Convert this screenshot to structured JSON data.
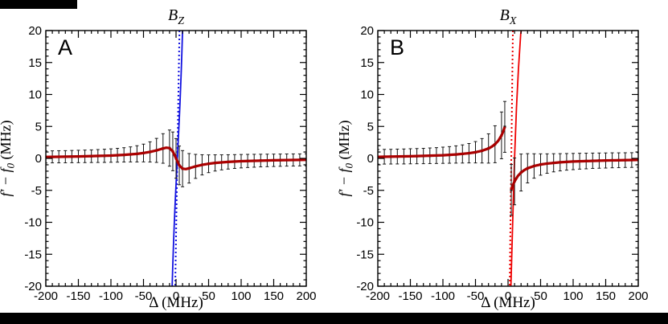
{
  "decor": {
    "top_bar_color": "#000000",
    "bottom_bar_color": "#000000"
  },
  "chart_data": [
    {
      "panel_label": "A",
      "type": "line+errorbar",
      "title_main": "B",
      "title_sub": "Z",
      "xlabel": "Δ (MHz)",
      "ylabel_main": "f′ − f",
      "ylabel_sub": "0",
      "ylabel_unit": " (MHz)",
      "xlim": [
        -200,
        200
      ],
      "ylim": [
        -20,
        20
      ],
      "x_major": [
        -200,
        -150,
        -100,
        -50,
        0,
        50,
        100,
        150,
        200
      ],
      "y_major": [
        -20,
        -15,
        -10,
        -5,
        0,
        5,
        10,
        15,
        20
      ],
      "x_minor_step": 10,
      "y_minor_step": 1,
      "series": [
        {
          "name": "model-line-solid",
          "type": "line",
          "color": "#1212e0",
          "width": 1.8,
          "dash": "",
          "points": [
            [
              -6,
              -20.1
            ],
            [
              -5,
              -16.7
            ],
            [
              -4,
              -13.7
            ],
            [
              -3,
              -11
            ],
            [
              -2,
              -8.5
            ],
            [
              -1,
              -6.2
            ],
            [
              0,
              -4.1
            ],
            [
              1,
              -2
            ],
            [
              2,
              0
            ],
            [
              3,
              2
            ],
            [
              4,
              4.1
            ],
            [
              5,
              6.2
            ],
            [
              6,
              8.5
            ],
            [
              7,
              11
            ],
            [
              8,
              13.7
            ],
            [
              9,
              16.7
            ],
            [
              10,
              20.1
            ]
          ]
        },
        {
          "name": "model-line-dotted",
          "type": "line",
          "color": "#1212e0",
          "width": 2,
          "dash": "2,3",
          "points": [
            [
              -1.33,
              -20.5
            ],
            [
              5.33,
              20.5
            ]
          ]
        },
        {
          "name": "data-points",
          "type": "errorbar",
          "color": "#151515",
          "points": [
            [
              -200,
              0.22,
              0.94
            ],
            [
              -190,
              0.24,
              0.94
            ],
            [
              -180,
              0.25,
              0.95
            ],
            [
              -170,
              0.26,
              0.95
            ],
            [
              -160,
              0.28,
              0.96
            ],
            [
              -150,
              0.3,
              0.97
            ],
            [
              -140,
              0.32,
              0.98
            ],
            [
              -130,
              0.34,
              0.99
            ],
            [
              -120,
              0.37,
              1.01
            ],
            [
              -110,
              0.4,
              1.03
            ],
            [
              -100,
              0.44,
              1.05
            ],
            [
              -90,
              0.49,
              1.08
            ],
            [
              -80,
              0.55,
              1.12
            ],
            [
              -70,
              0.62,
              1.18
            ],
            [
              -60,
              0.71,
              1.27
            ],
            [
              -50,
              0.84,
              1.39
            ],
            [
              -40,
              1.01,
              1.58
            ],
            [
              -30,
              1.25,
              1.88
            ],
            [
              -20,
              1.55,
              2.31
            ],
            [
              -10,
              1.61,
              2.83
            ],
            [
              -5,
              1.1,
              3.03
            ],
            [
              0,
              0.0,
              3.1
            ],
            [
              5,
              -1.1,
              3.03
            ],
            [
              10,
              -1.61,
              2.83
            ],
            [
              20,
              -1.55,
              2.31
            ],
            [
              30,
              -1.25,
              1.88
            ],
            [
              40,
              -1.01,
              1.58
            ],
            [
              50,
              -0.84,
              1.39
            ],
            [
              60,
              -0.71,
              1.27
            ],
            [
              70,
              -0.62,
              1.18
            ],
            [
              80,
              -0.55,
              1.12
            ],
            [
              90,
              -0.49,
              1.08
            ],
            [
              100,
              -0.44,
              1.05
            ],
            [
              110,
              -0.4,
              1.03
            ],
            [
              120,
              -0.37,
              1.01
            ],
            [
              130,
              -0.34,
              0.99
            ],
            [
              140,
              -0.32,
              0.98
            ],
            [
              150,
              -0.3,
              0.97
            ],
            [
              160,
              -0.28,
              0.96
            ],
            [
              170,
              -0.26,
              0.95
            ],
            [
              180,
              -0.25,
              0.95
            ],
            [
              190,
              -0.24,
              0.94
            ],
            [
              200,
              -0.22,
              0.94
            ]
          ]
        },
        {
          "name": "fit-curve",
          "type": "line",
          "color": "#aa0000",
          "width": 3.2,
          "dash": "",
          "points": [
            [
              -200,
              0.22
            ],
            [
              -150,
              0.3
            ],
            [
              -100,
              0.44
            ],
            [
              -80,
              0.55
            ],
            [
              -60,
              0.71
            ],
            [
              -50,
              0.84
            ],
            [
              -40,
              1.01
            ],
            [
              -30,
              1.25
            ],
            [
              -25,
              1.4
            ],
            [
              -20,
              1.55
            ],
            [
              -15,
              1.67
            ],
            [
              -10,
              1.61
            ],
            [
              -5,
              1.1
            ],
            [
              0,
              0
            ],
            [
              5,
              -1.1
            ],
            [
              10,
              -1.61
            ],
            [
              15,
              -1.67
            ],
            [
              20,
              -1.55
            ],
            [
              25,
              -1.4
            ],
            [
              30,
              -1.25
            ],
            [
              40,
              -1.01
            ],
            [
              50,
              -0.84
            ],
            [
              60,
              -0.71
            ],
            [
              80,
              -0.55
            ],
            [
              100,
              -0.44
            ],
            [
              150,
              -0.3
            ],
            [
              200,
              -0.22
            ]
          ]
        }
      ]
    },
    {
      "panel_label": "B",
      "type": "line+errorbar",
      "title_main": "B",
      "title_sub": "X",
      "xlabel": "Δ (MHz)",
      "ylabel_main": "f′ − f",
      "ylabel_sub": "0",
      "ylabel_unit": " (MHz)",
      "xlim": [
        -200,
        200
      ],
      "ylim": [
        -20,
        20
      ],
      "x_major": [
        -200,
        -150,
        -100,
        -50,
        0,
        50,
        100,
        150,
        200
      ],
      "y_major": [
        -20,
        -15,
        -10,
        -5,
        0,
        5,
        10,
        15,
        20
      ],
      "x_minor_step": 10,
      "y_minor_step": 1,
      "series": [
        {
          "name": "model-line-solid",
          "type": "line",
          "color": "#ee0000",
          "width": 1.8,
          "dash": "",
          "points": [
            [
              4.3,
              -20.5
            ],
            [
              7,
              -10.5
            ],
            [
              10,
              0
            ],
            [
              13,
              8
            ],
            [
              16,
              14
            ],
            [
              19.5,
              19.5
            ],
            [
              21,
              20.5
            ]
          ]
        },
        {
          "name": "model-line-dotted",
          "type": "line",
          "color": "#ee0000",
          "width": 2,
          "dash": "2,3",
          "points": [
            [
              2.5,
              -20.5
            ],
            [
              7.5,
              20.5
            ]
          ]
        },
        {
          "name": "data-points",
          "type": "errorbar",
          "color": "#151515",
          "points": [
            [
              -200,
              0.24,
              1.14
            ],
            [
              -190,
              0.26,
              1.15
            ],
            [
              -180,
              0.27,
              1.15
            ],
            [
              -170,
              0.29,
              1.16
            ],
            [
              -160,
              0.3,
              1.17
            ],
            [
              -150,
              0.33,
              1.18
            ],
            [
              -140,
              0.35,
              1.19
            ],
            [
              -130,
              0.37,
              1.2
            ],
            [
              -120,
              0.41,
              1.22
            ],
            [
              -110,
              0.44,
              1.24
            ],
            [
              -100,
              0.49,
              1.27
            ],
            [
              -90,
              0.54,
              1.3
            ],
            [
              -80,
              0.61,
              1.35
            ],
            [
              -70,
              0.69,
              1.42
            ],
            [
              -60,
              0.81,
              1.52
            ],
            [
              -50,
              0.96,
              1.67
            ],
            [
              -40,
              1.19,
              1.91
            ],
            [
              -30,
              1.55,
              2.29
            ],
            [
              -20,
              2.21,
              2.89
            ],
            [
              -10,
              3.6,
              3.66
            ],
            [
              -5,
              4.93,
              3.98
            ],
            [
              5,
              -4.93,
              3.98
            ],
            [
              10,
              -3.6,
              3.66
            ],
            [
              20,
              -2.21,
              2.89
            ],
            [
              30,
              -1.55,
              2.29
            ],
            [
              40,
              -1.19,
              1.91
            ],
            [
              50,
              -0.96,
              1.67
            ],
            [
              60,
              -0.81,
              1.52
            ],
            [
              70,
              -0.69,
              1.42
            ],
            [
              80,
              -0.61,
              1.35
            ],
            [
              90,
              -0.54,
              1.3
            ],
            [
              100,
              -0.49,
              1.27
            ],
            [
              110,
              -0.44,
              1.24
            ],
            [
              120,
              -0.41,
              1.22
            ],
            [
              130,
              -0.37,
              1.2
            ],
            [
              140,
              -0.35,
              1.19
            ],
            [
              150,
              -0.33,
              1.18
            ],
            [
              160,
              -0.3,
              1.17
            ],
            [
              170,
              -0.29,
              1.16
            ],
            [
              180,
              -0.27,
              1.15
            ],
            [
              190,
              -0.26,
              1.15
            ],
            [
              200,
              -0.24,
              1.14
            ]
          ]
        },
        {
          "name": "fit-curve-left",
          "type": "line",
          "color": "#aa0000",
          "width": 3.2,
          "dash": "",
          "points": [
            [
              -200,
              0.24
            ],
            [
              -150,
              0.33
            ],
            [
              -100,
              0.49
            ],
            [
              -80,
              0.61
            ],
            [
              -60,
              0.81
            ],
            [
              -50,
              0.96
            ],
            [
              -40,
              1.19
            ],
            [
              -30,
              1.55
            ],
            [
              -25,
              1.83
            ],
            [
              -20,
              2.21
            ],
            [
              -15,
              2.76
            ],
            [
              -10,
              3.6
            ],
            [
              -8,
              4.06
            ],
            [
              -6,
              4.62
            ],
            [
              -5,
              4.93
            ]
          ]
        },
        {
          "name": "fit-curve-right",
          "type": "line",
          "color": "#aa0000",
          "width": 3.2,
          "dash": "",
          "points": [
            [
              5,
              -4.93
            ],
            [
              6,
              -4.62
            ],
            [
              8,
              -4.06
            ],
            [
              10,
              -3.6
            ],
            [
              15,
              -2.76
            ],
            [
              20,
              -2.21
            ],
            [
              25,
              -1.83
            ],
            [
              30,
              -1.55
            ],
            [
              40,
              -1.19
            ],
            [
              50,
              -0.96
            ],
            [
              60,
              -0.81
            ],
            [
              80,
              -0.61
            ],
            [
              100,
              -0.49
            ],
            [
              150,
              -0.33
            ],
            [
              200,
              -0.24
            ]
          ]
        }
      ]
    }
  ]
}
